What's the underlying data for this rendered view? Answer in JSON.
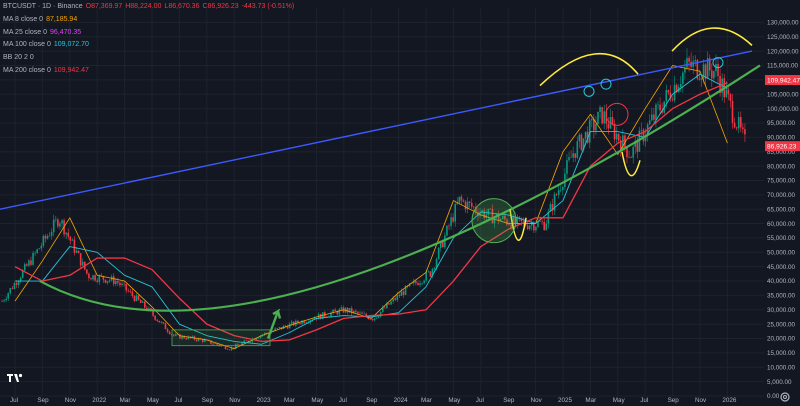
{
  "header": {
    "symbol": "BTCUSDT · 1D · Binance",
    "open": "O87,369.97",
    "high": "H88,224.00",
    "low": "L86,670.36",
    "close": "C86,926.23",
    "change": "-443.73 (-0.51%)"
  },
  "indicators": [
    {
      "label": "MA 8 close 0",
      "value": "87,185.94",
      "color": "#f7a600"
    },
    {
      "label": "MA 25 close 0",
      "value": "96,470.35",
      "color": "#e040fb"
    },
    {
      "label": "MA 100 close 0",
      "value": "109,072.70",
      "color": "#26c6da"
    },
    {
      "label": "BB 20 2 0",
      "value": "",
      "color": "#787b86"
    },
    {
      "label": "MA 200 close 0",
      "value": "109,942.47",
      "color": "#f23645"
    }
  ],
  "price_scale": [
    "130,000.00",
    "125,000.00",
    "120,000.00",
    "115,000.00",
    "110,000.00",
    "105,000.00",
    "100,000.00",
    "95,000.00",
    "90,000.00",
    "85,000.00",
    "80,000.00",
    "75,000.00",
    "70,000.00",
    "65,000.00",
    "60,000.00",
    "55,000.00",
    "50,000.00",
    "45,000.00",
    "40,000.00",
    "35,000.00",
    "30,000.00",
    "25,000.00",
    "20,000.00",
    "15,000.00",
    "10,000.00",
    "5,000.00",
    "0.00"
  ],
  "time_scale": [
    "Jul",
    "Sep",
    "Nov",
    "2022",
    "Mar",
    "May",
    "Jul",
    "Sep",
    "Nov",
    "2023",
    "Mar",
    "May",
    "Jul",
    "Sep",
    "2024",
    "Mar",
    "May",
    "Jul",
    "Sep",
    "Nov",
    "2025",
    "Mar",
    "May",
    "Jul",
    "Sep",
    "Nov",
    "2026"
  ],
  "price_badges": {
    "ma200": "109,942.47",
    "last": "86,926.23"
  },
  "colors": {
    "up": "#089981",
    "down": "#f23645",
    "ma8": "#f7a600",
    "ma100": "#26c6da",
    "ma200": "#f23645",
    "trendline": "#3d5afe",
    "support_curve": "#4caf50",
    "annotation": "#ffeb3b"
  },
  "icons": {
    "logo": "tradingview-logo-icon",
    "settings": "gear-icon"
  },
  "chart_data": {
    "type": "line",
    "title": "BTCUSDT · 1D · Binance",
    "xlabel": "",
    "ylabel": "",
    "ylim": [
      0,
      135000
    ],
    "x": [
      "2021-07",
      "2021-09",
      "2021-11",
      "2022-01",
      "2022-03",
      "2022-05",
      "2022-07",
      "2022-09",
      "2022-11",
      "2023-01",
      "2023-03",
      "2023-05",
      "2023-07",
      "2023-09",
      "2023-11",
      "2024-01",
      "2024-03",
      "2024-05",
      "2024-07",
      "2024-09",
      "2024-11",
      "2025-01",
      "2025-03",
      "2025-05",
      "2025-07",
      "2025-09",
      "2025-11"
    ],
    "series": [
      {
        "name": "MA 8 close 0",
        "values": [
          33000,
          47000,
          62000,
          42000,
          40000,
          31000,
          21000,
          19500,
          16500,
          21000,
          24500,
          27500,
          30000,
          27000,
          36000,
          43000,
          68000,
          63000,
          60000,
          60000,
          85000,
          98000,
          84000,
          100000,
          115000,
          113000,
          88000
        ]
      },
      {
        "name": "MA 100 close 0",
        "values": [
          40000,
          40000,
          52000,
          50000,
          42000,
          38000,
          25000,
          21000,
          19000,
          18000,
          22000,
          27000,
          28000,
          27500,
          29000,
          38000,
          55000,
          64000,
          63000,
          60000,
          68000,
          92000,
          92000,
          90000,
          105000,
          112000,
          107000
        ]
      },
      {
        "name": "MA 200 close 0",
        "values": [
          45000,
          40000,
          42000,
          48000,
          48000,
          44000,
          34000,
          25000,
          21000,
          19000,
          19500,
          23000,
          27000,
          28000,
          28500,
          30000,
          40000,
          52000,
          58000,
          62000,
          62000,
          80000,
          88000,
          92000,
          100000,
          105000,
          109000
        ]
      }
    ]
  }
}
